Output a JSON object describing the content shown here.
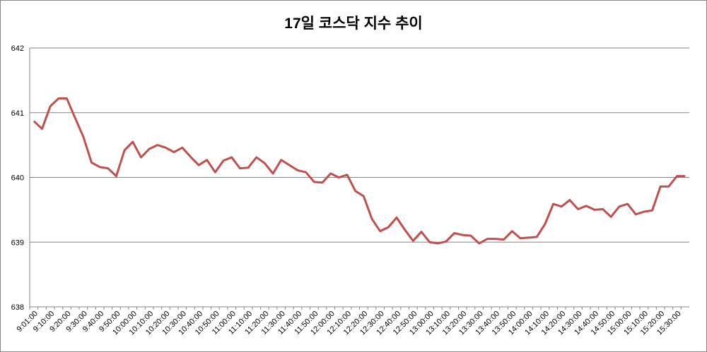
{
  "chart_data": {
    "type": "line",
    "title": "17일 코스닥 지수 추이",
    "categories": [
      "9:01:00",
      null,
      "9:10:00",
      null,
      "9:20:00",
      null,
      "9:30:00",
      null,
      "9:40:00",
      null,
      "9:50:00",
      null,
      "10:00:00",
      null,
      "10:10:00",
      null,
      "10:20:00",
      null,
      "10:30:00",
      null,
      "10:40:00",
      null,
      "10:50:00",
      null,
      "11:00:00",
      null,
      "11:10:00",
      null,
      "11:20:00",
      null,
      "11:30:00",
      null,
      "11:40:00",
      null,
      "11:50:00",
      null,
      "12:00:00",
      null,
      "12:10:00",
      null,
      "12:20:00",
      null,
      "12:30:00",
      null,
      "12:40:00",
      null,
      "12:50:00",
      null,
      "13:00:00",
      null,
      "13:10:00",
      null,
      "13:20:00",
      null,
      "13:30:00",
      null,
      "13:40:00",
      null,
      "13:50:00",
      null,
      "14:00:00",
      null,
      "14:10:00",
      null,
      "14:20:00",
      null,
      "14:30:00",
      null,
      "14:40:00",
      null,
      "14:50:00",
      null,
      "15:00:00",
      null,
      "15:10:00",
      null,
      "15:20:00",
      null,
      "15:30:00",
      null
    ],
    "values": [
      640.87,
      640.75,
      641.1,
      641.22,
      641.22,
      640.92,
      640.63,
      640.23,
      640.16,
      640.14,
      640.02,
      640.42,
      640.55,
      640.31,
      640.44,
      640.5,
      640.46,
      640.39,
      640.46,
      640.32,
      640.19,
      640.27,
      640.08,
      640.26,
      640.31,
      640.14,
      640.15,
      640.31,
      640.22,
      640.06,
      640.27,
      640.19,
      640.11,
      640.08,
      639.93,
      639.92,
      640.06,
      640.0,
      640.04,
      639.79,
      639.71,
      639.36,
      639.17,
      639.23,
      639.38,
      639.19,
      639.02,
      639.16,
      639.0,
      638.98,
      639.01,
      639.14,
      639.11,
      639.1,
      638.98,
      639.05,
      639.05,
      639.04,
      639.17,
      639.06,
      639.07,
      639.08,
      639.28,
      639.59,
      639.55,
      639.65,
      639.51,
      639.56,
      639.5,
      639.51,
      639.39,
      639.55,
      639.59,
      639.43,
      639.47,
      639.49,
      639.86,
      639.86,
      640.02,
      640.02
    ],
    "color": "#c0504d",
    "ylim": [
      638,
      642
    ],
    "yticks": [
      638,
      639,
      640,
      641,
      642
    ],
    "grid": true
  }
}
